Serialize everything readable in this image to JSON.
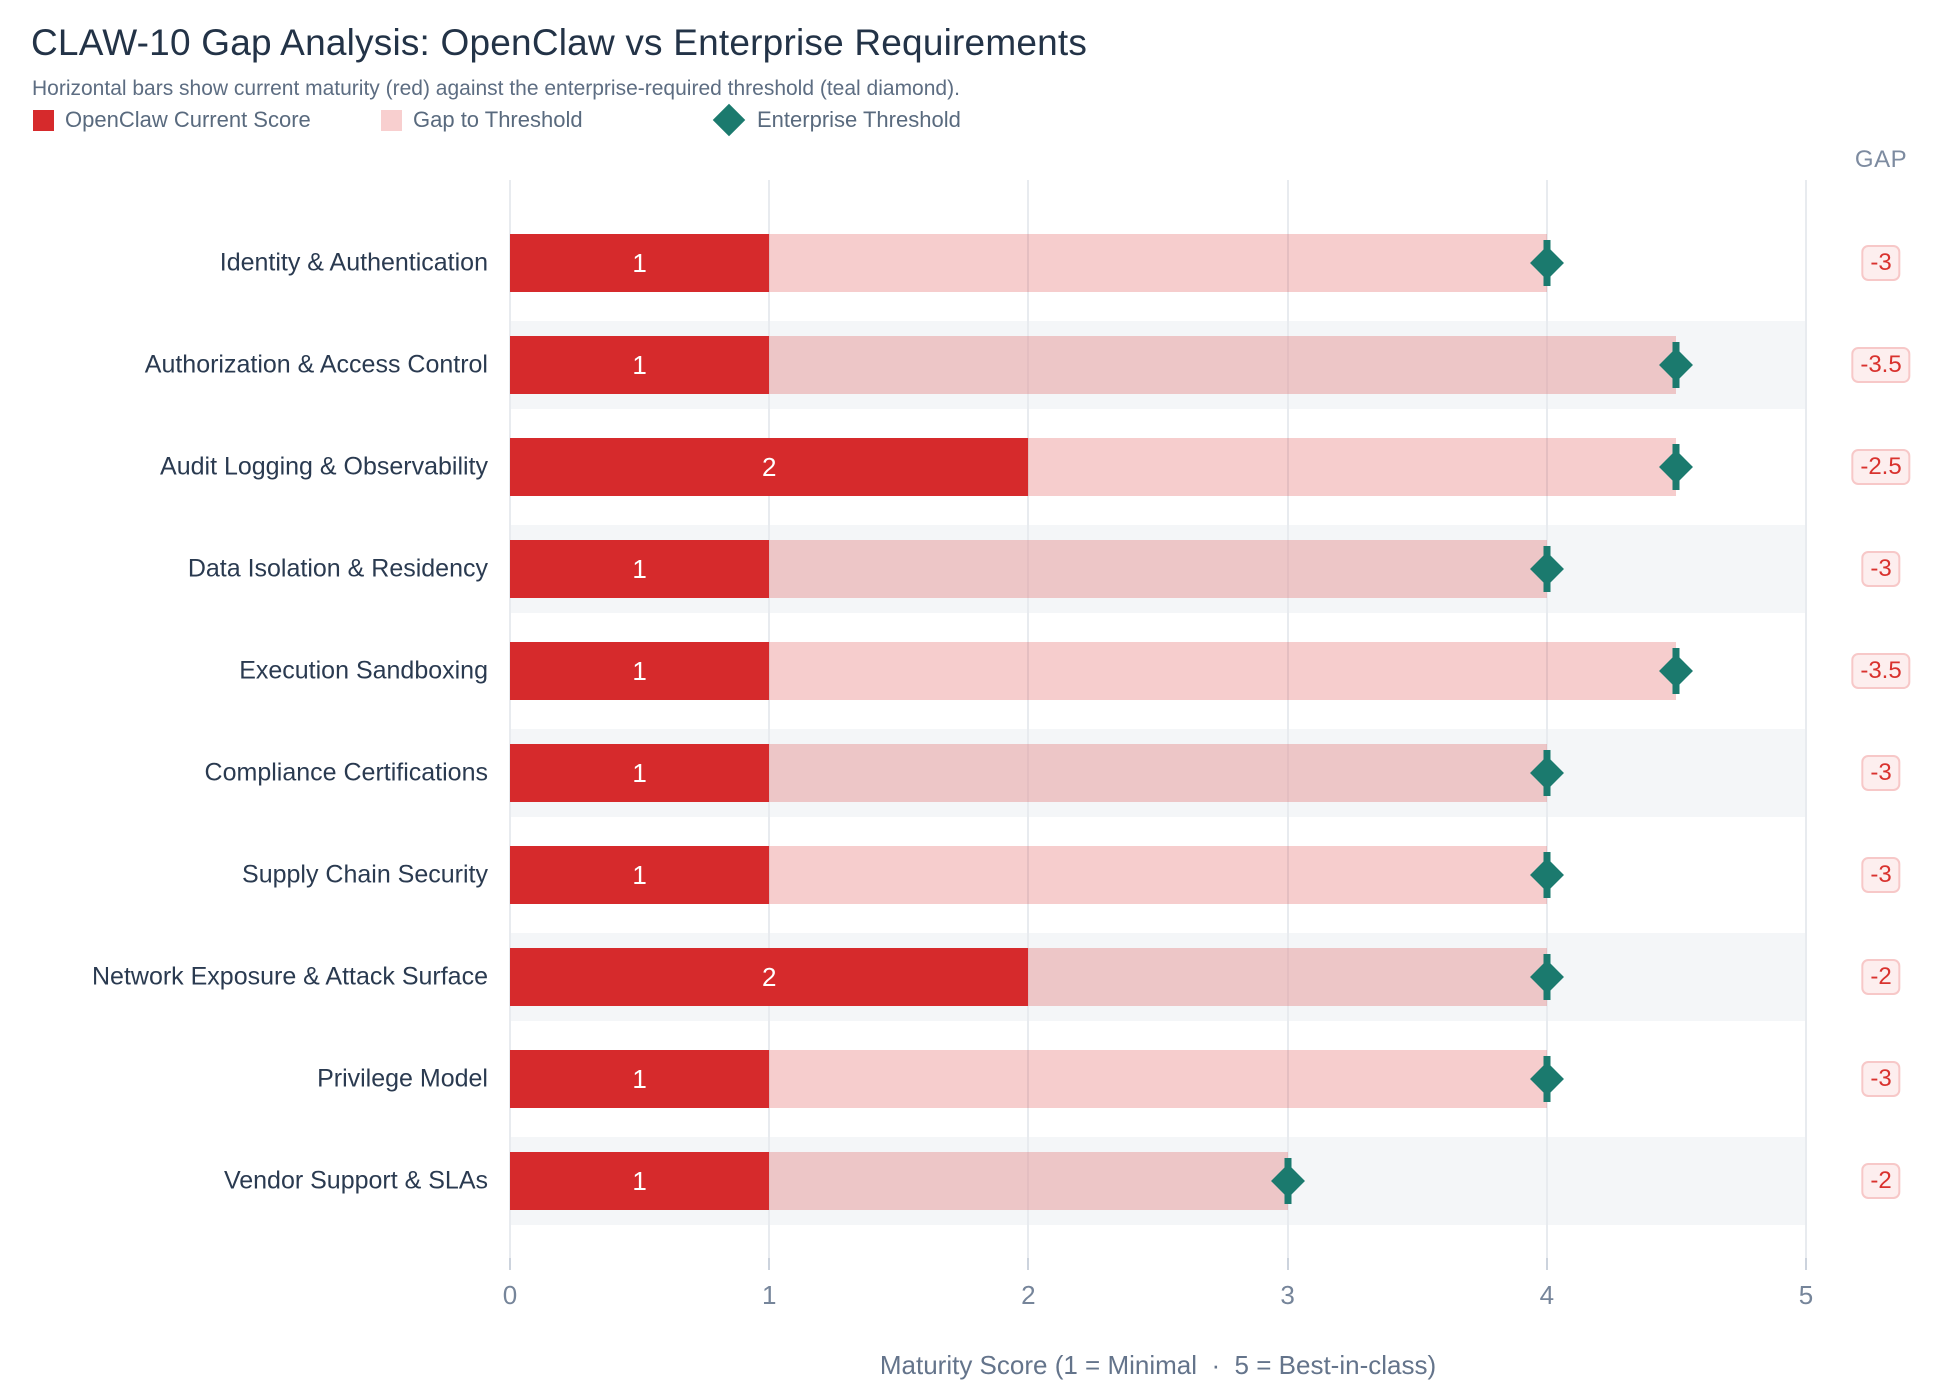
{
  "header": {
    "title": "CLAW-10 Gap Analysis: OpenClaw vs Enterprise Requirements",
    "subtitle": "Horizontal bars show current maturity (red) against the enterprise-required threshold (teal diamond).",
    "gap_column_label": "GAP"
  },
  "legend": {
    "current_label": "OpenClaw Current Score",
    "gap_label": "Gap to Threshold",
    "threshold_label": "Enterprise Threshold"
  },
  "colors": {
    "current_bar": "#d62a2c",
    "gap_bar_fill": "rgba(217,48,48,0.24)",
    "gap_bar_legend_swatch": "#f8cfcf",
    "threshold_marker": "#1b7a6e",
    "badge_text": "#d9322e",
    "badge_background": "#fdeeee",
    "badge_border": "#f7c8c8",
    "row_stripe": "#f4f6f8",
    "gridline": "#e8ebef"
  },
  "chart_data": {
    "type": "bar",
    "orientation": "horizontal",
    "title": "CLAW-10 Gap Analysis: OpenClaw vs Enterprise Requirements",
    "subtitle": "Horizontal bars show current maturity (red) against the enterprise-required threshold (teal diamond).",
    "categories": [
      "Identity & Authentication",
      "Authorization & Access Control",
      "Audit Logging & Observability",
      "Data Isolation & Residency",
      "Execution Sandboxing",
      "Compliance Certifications",
      "Supply Chain Security",
      "Network Exposure & Attack Surface",
      "Privilege Model",
      "Vendor Support & SLAs"
    ],
    "series": [
      {
        "name": "OpenClaw Current Score",
        "values": [
          1,
          1,
          2,
          1,
          1,
          1,
          1,
          2,
          1,
          1
        ]
      },
      {
        "name": "Enterprise Threshold",
        "values": [
          4,
          4.5,
          4.5,
          4,
          4.5,
          4,
          4,
          4,
          4,
          3
        ]
      }
    ],
    "bar_value_labels": [
      "1",
      "1",
      "2",
      "1",
      "1",
      "1",
      "1",
      "2",
      "1",
      "1"
    ],
    "gap_labels": [
      "-3",
      "-3.5",
      "-2.5",
      "-3",
      "-3.5",
      "-3",
      "-3",
      "-2",
      "-3",
      "-2"
    ],
    "xlabel": "Maturity Score (1 = Minimal  ·  5 = Best-in-class)",
    "xlim": [
      0,
      5
    ],
    "xticks": [
      0,
      1,
      2,
      3,
      4,
      5
    ],
    "grid": true,
    "row_stripes": "alternate (2nd, 4th, 6th, 8th, 10th rows shaded)",
    "legend_position": "top-left"
  }
}
